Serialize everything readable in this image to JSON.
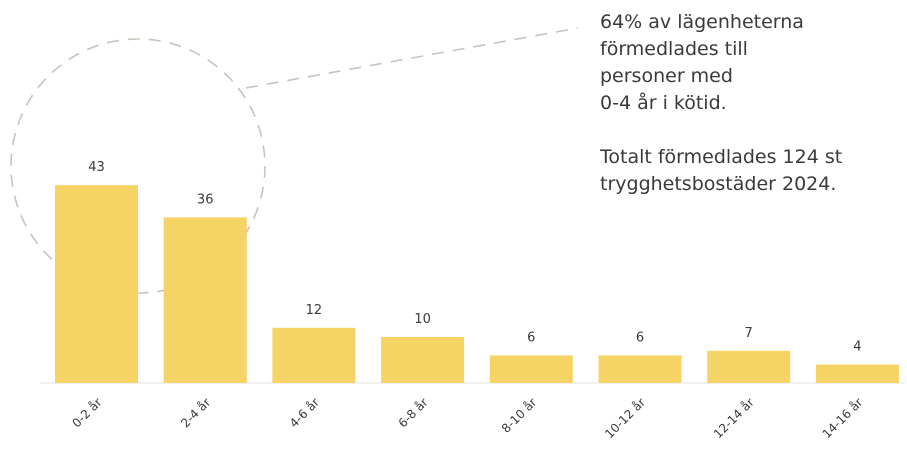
{
  "chart_data": {
    "type": "bar",
    "categories": [
      "0-2 år",
      "2-4 år",
      "4-6 år",
      "6-8 år",
      "8-10 år",
      "10-12 år",
      "12-14 år",
      "14-16 år"
    ],
    "values": [
      43,
      36,
      12,
      10,
      6,
      6,
      7,
      4
    ],
    "title": "",
    "xlabel": "",
    "ylabel": "",
    "ylim": [
      0,
      45
    ],
    "grid": false,
    "bar_color": "#f6d365",
    "annotation_lines": [
      "64% av lägenheterna",
      "förmedlades till",
      "personer med",
      "0-4 år i kötid."
    ],
    "annotation_lines_2": [
      "Totalt förmedlades 124 st",
      "trygghetsbostäder 2024."
    ]
  }
}
